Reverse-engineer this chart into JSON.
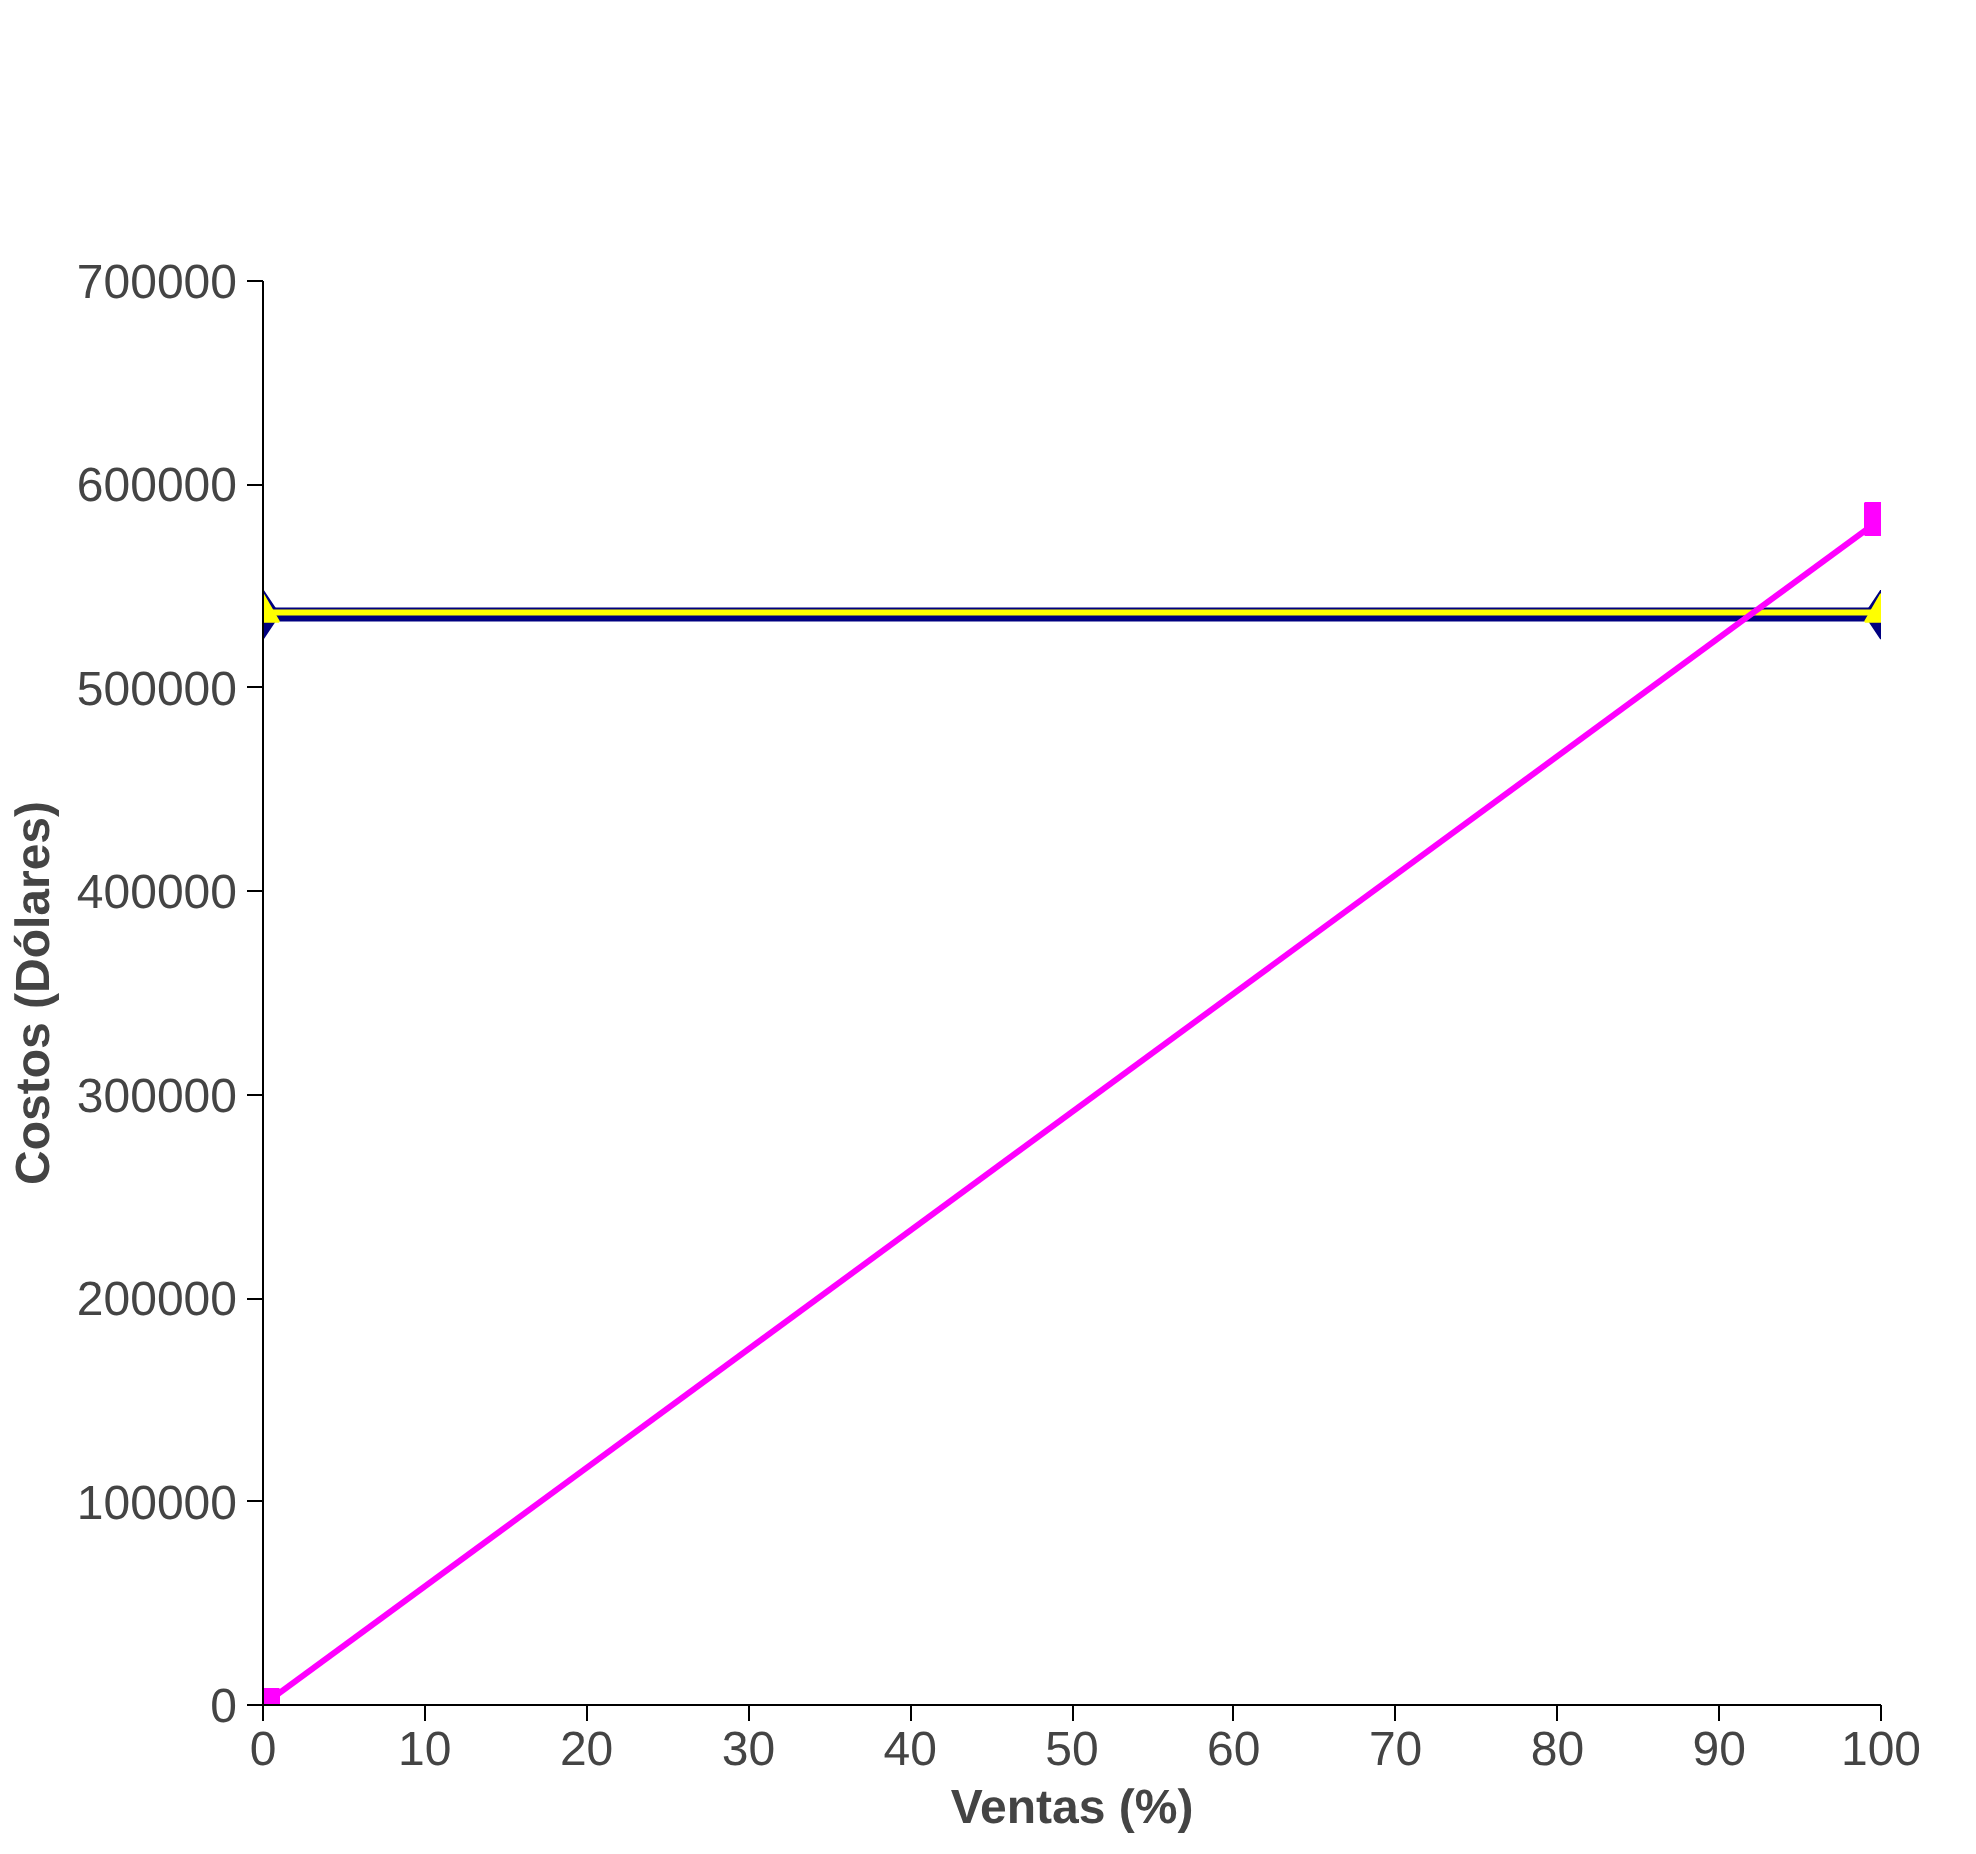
{
  "chart_data": {
    "type": "line",
    "xlabel": "Ventas (%)",
    "ylabel": "Costos (Dólares)",
    "x": [
      0,
      100
    ],
    "series": [
      {
        "color": "#000080",
        "values": [
          536000,
          536000
        ],
        "marker": "diamond"
      },
      {
        "color": "#ffff00",
        "values": [
          537000,
          537000
        ],
        "marker": "triangle"
      },
      {
        "color": "#ff00ff",
        "values": [
          0,
          583000
        ],
        "marker": "square"
      }
    ],
    "xlim": [
      0,
      100
    ],
    "xticks": [
      0,
      10,
      20,
      30,
      40,
      50,
      60,
      70,
      80,
      90,
      100
    ],
    "ylim": [
      0,
      700000
    ],
    "yticks": [
      0,
      100000,
      200000,
      300000,
      400000,
      500000,
      600000,
      700000
    ],
    "grid": false,
    "line_style": "solid"
  }
}
